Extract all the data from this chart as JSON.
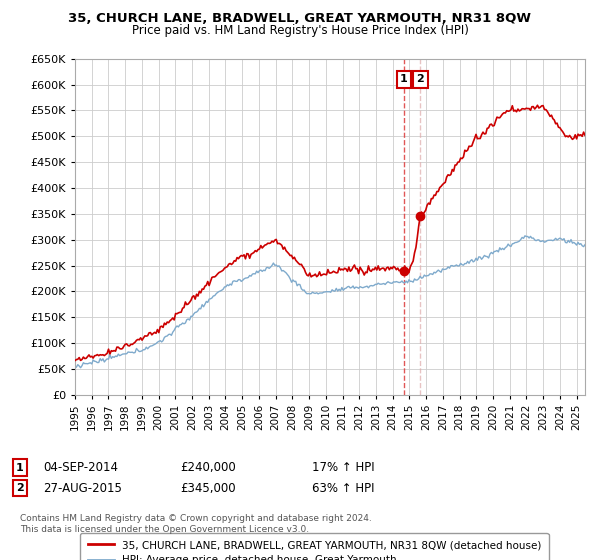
{
  "title": "35, CHURCH LANE, BRADWELL, GREAT YARMOUTH, NR31 8QW",
  "subtitle": "Price paid vs. HM Land Registry's House Price Index (HPI)",
  "legend_line1": "35, CHURCH LANE, BRADWELL, GREAT YARMOUTH, NR31 8QW (detached house)",
  "legend_line2": "HPI: Average price, detached house, Great Yarmouth",
  "annotation1_label": "1",
  "annotation1_date": "04-SEP-2014",
  "annotation1_price": "£240,000",
  "annotation1_hpi": "17% ↑ HPI",
  "annotation2_label": "2",
  "annotation2_date": "27-AUG-2015",
  "annotation2_price": "£345,000",
  "annotation2_hpi": "63% ↑ HPI",
  "footnote1": "Contains HM Land Registry data © Crown copyright and database right 2024.",
  "footnote2": "This data is licensed under the Open Government Licence v3.0.",
  "red_color": "#cc0000",
  "blue_color": "#7faacc",
  "vline1_color": "#dd4444",
  "vline2_color": "#ddaaaa",
  "marker_box_color": "#cc0000",
  "ylim": [
    0,
    650000
  ],
  "yticks": [
    0,
    50000,
    100000,
    150000,
    200000,
    250000,
    300000,
    350000,
    400000,
    450000,
    500000,
    550000,
    600000,
    650000
  ],
  "xlim_start": 1995.0,
  "xlim_end": 2025.5,
  "point1_x": 2014.67,
  "point1_y": 240000,
  "point2_x": 2015.65,
  "point2_y": 345000,
  "background_color": "#ffffff",
  "grid_color": "#cccccc"
}
